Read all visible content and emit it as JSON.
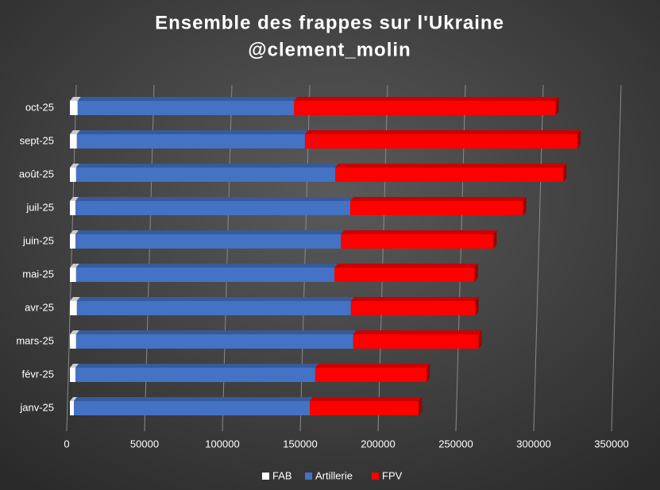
{
  "chart_data": {
    "type": "stacked-barh",
    "title": "Ensemble des frappes sur l'Ukraine",
    "subtitle": "@clement_molin",
    "categories": [
      "janv-25",
      "févr-25",
      "mars-25",
      "avr-25",
      "mai-25",
      "juin-25",
      "juil-25",
      "août-25",
      "sept-25",
      "oct-25"
    ],
    "series": [
      {
        "name": "FAB",
        "color": "#ffffff",
        "values": [
          2600,
          3600,
          4000,
          4500,
          4000,
          3600,
          3600,
          4000,
          4500,
          5000
        ]
      },
      {
        "name": "Artillerie",
        "color": "#4472c4",
        "values": [
          151500,
          154000,
          178000,
          176000,
          166000,
          170500,
          176500,
          166500,
          146500,
          139000
        ]
      },
      {
        "name": "FPV",
        "color": "#ff0000",
        "values": [
          70000,
          71500,
          80500,
          80000,
          90000,
          98000,
          111000,
          146500,
          175000,
          168000
        ]
      }
    ],
    "xlim": [
      0,
      350000
    ],
    "xticks": [
      0,
      50000,
      100000,
      150000,
      200000,
      250000,
      300000,
      350000
    ],
    "grid": true,
    "legend": "bottom"
  }
}
